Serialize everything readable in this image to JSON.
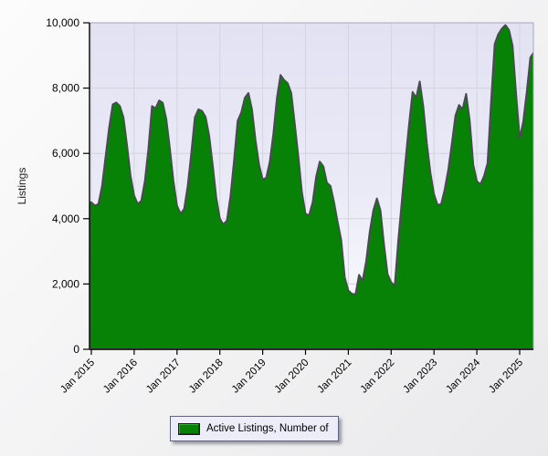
{
  "legend": {
    "label": "Active Listings, Number of",
    "swatch_color": "#078207"
  },
  "axes": {
    "y_title": "Listings",
    "y_tick_labels": [
      "0",
      "2,000",
      "4,000",
      "6,000",
      "8,000",
      "10,000"
    ],
    "x_tick_labels": [
      "Jan 2015",
      "Jan 2016",
      "Jan 2017",
      "Jan 2018",
      "Jan 2019",
      "Jan 2020",
      "Jan 2021",
      "Jan 2022",
      "Jan 2023",
      "Jan 2024",
      "Jan 2025"
    ]
  },
  "chart_data": {
    "type": "area",
    "title": "",
    "xlabel": "",
    "ylabel": "Listings",
    "ylim": [
      0,
      10000
    ],
    "y_ticks": [
      0,
      2000,
      4000,
      6000,
      8000,
      10000
    ],
    "y_tick_labels": [
      "0",
      "2,000",
      "4,000",
      "6,000",
      "8,000",
      "10,000"
    ],
    "x_tick_labels": [
      "Jan 2015",
      "Jan 2016",
      "Jan 2017",
      "Jan 2018",
      "Jan 2019",
      "Jan 2020",
      "Jan 2021",
      "Jan 2022",
      "Jan 2023",
      "Jan 2024",
      "Jan 2025"
    ],
    "grid": true,
    "legend_position": "bottom-center",
    "frequency": "monthly",
    "x_start": "Jan 2015",
    "x_end": "May 2025",
    "series": [
      {
        "name": "Active Listings, Number of",
        "values": [
          4500,
          4400,
          4450,
          5000,
          5900,
          6800,
          7500,
          7560,
          7450,
          7100,
          6250,
          5300,
          4700,
          4450,
          4550,
          5150,
          6150,
          7450,
          7380,
          7620,
          7550,
          7050,
          6150,
          5150,
          4400,
          4150,
          4300,
          5000,
          6000,
          7100,
          7350,
          7300,
          7120,
          6550,
          5650,
          4650,
          4000,
          3820,
          3950,
          4700,
          5800,
          7000,
          7250,
          7700,
          7850,
          7350,
          6400,
          5650,
          5200,
          5250,
          5750,
          6600,
          7700,
          8400,
          8250,
          8150,
          7850,
          6900,
          5900,
          4800,
          4150,
          4100,
          4500,
          5300,
          5750,
          5600,
          5100,
          5000,
          4500,
          3900,
          3350,
          2200,
          1800,
          1700,
          1680,
          2280,
          2100,
          2700,
          3600,
          4250,
          4620,
          4250,
          3200,
          2300,
          2050,
          1950,
          3350,
          4550,
          5760,
          6880,
          7880,
          7700,
          8200,
          7430,
          6300,
          5400,
          4750,
          4420,
          4450,
          4900,
          5500,
          6300,
          7150,
          7480,
          7350,
          7820,
          7000,
          5650,
          5150,
          5050,
          5300,
          5700,
          7600,
          9350,
          9650,
          9820,
          9930,
          9780,
          9300,
          7820,
          6450,
          6980,
          7900,
          8940,
          9100
        ]
      }
    ],
    "colors": {
      "area_fill": "#078207",
      "area_stroke": "#4a4a52",
      "plot_bg_top": "#e2e2f3",
      "plot_bg_mid": "#eaeaf7",
      "plot_bg_bottom": "#fdfdff",
      "gridline": "#d4d4e0",
      "axis": "#000000",
      "plot_border": "#a7a7ba",
      "tick_text": "#000000"
    }
  }
}
